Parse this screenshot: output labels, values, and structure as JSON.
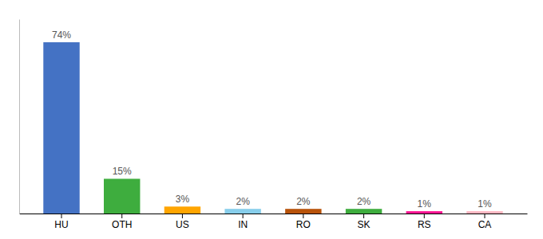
{
  "chart_data": {
    "type": "bar",
    "categories": [
      "HU",
      "OTH",
      "US",
      "IN",
      "RO",
      "SK",
      "RS",
      "CA"
    ],
    "values": [
      74,
      15,
      3,
      2,
      2,
      2,
      1,
      1
    ],
    "value_labels": [
      "74%",
      "15%",
      "3%",
      "2%",
      "2%",
      "2%",
      "1%",
      "1%"
    ],
    "colors": [
      "#4472C4",
      "#3EAD3E",
      "#FFA500",
      "#87CEEB",
      "#B8530A",
      "#3EAD3E",
      "#FF1493",
      "#FFB6C1"
    ],
    "ylim": [
      0,
      84
    ],
    "data_labels": true,
    "tick_labels": "x"
  }
}
